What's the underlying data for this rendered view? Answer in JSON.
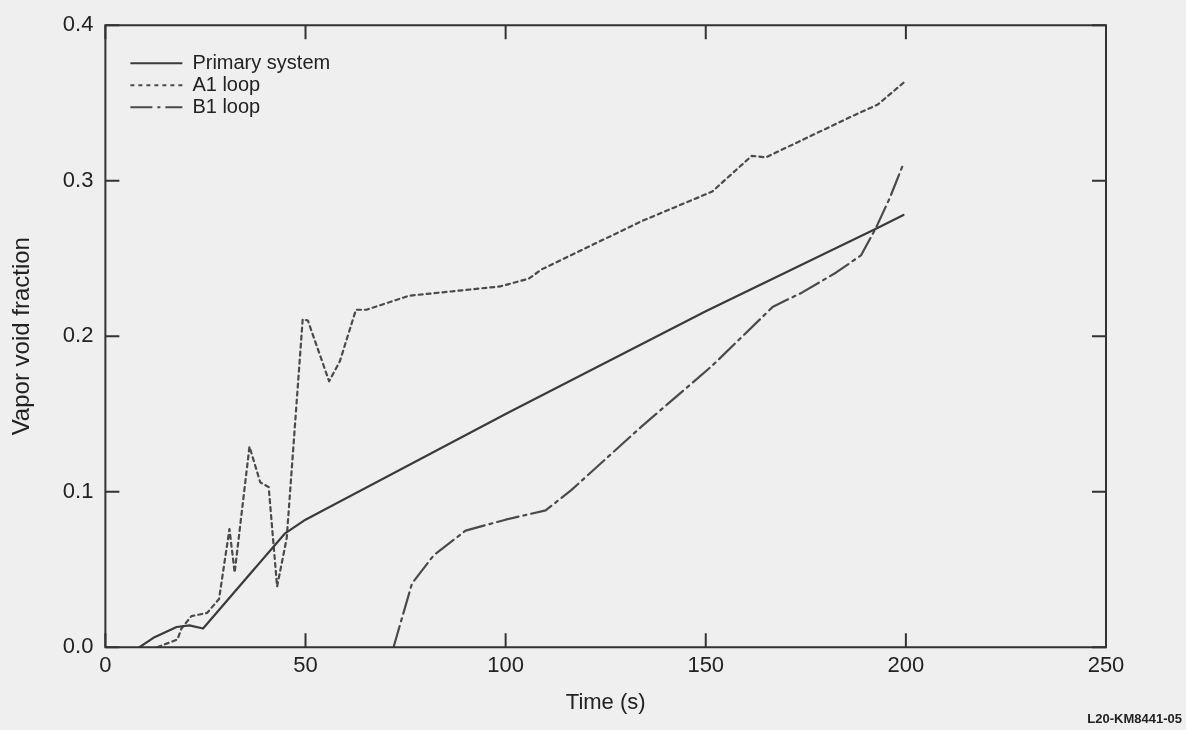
{
  "chart_data": {
    "type": "line",
    "xlabel": "Time (s)",
    "ylabel": "Vapor void fraction",
    "xlim": [
      0,
      250
    ],
    "ylim": [
      0,
      0.4
    ],
    "xticks": [
      0,
      50,
      100,
      150,
      200,
      250
    ],
    "yticks": [
      {
        "value": 0,
        "label": "0.0"
      },
      0.1,
      0.2,
      0.3,
      0.4
    ],
    "legend": "top left",
    "marker": "none",
    "annotations": [
      "L20-KM8441-05"
    ],
    "series": [
      {
        "name": "Primary system",
        "color": "#3a3a3a",
        "line_style": "solid",
        "x": [
          8.5,
          12,
          17.8,
          21,
          24.4,
          44.8,
          50,
          100,
          150,
          192.4,
          199.4
        ],
        "values": [
          0,
          0.006,
          0.013,
          0.014,
          0.012,
          0.073,
          0.082,
          0.15,
          0.216,
          0.269,
          0.278
        ]
      },
      {
        "name": "A1 loop",
        "color": "#4a4a4a",
        "line_style": "dotted",
        "x": [
          13,
          18,
          19,
          21.5,
          25.4,
          28.4,
          31,
          32.3,
          36,
          38.7,
          40.8,
          42.9,
          45.3,
          49.3,
          50.6,
          55.9,
          58.6,
          62.6,
          65.2,
          75.8,
          98.6,
          105.8,
          109,
          134,
          151.6,
          161.5,
          165,
          187,
          193,
          199.4
        ],
        "values": [
          0,
          0.005,
          0.012,
          0.02,
          0.022,
          0.031,
          0.076,
          0.048,
          0.129,
          0.106,
          0.103,
          0.039,
          0.07,
          0.211,
          0.21,
          0.171,
          0.184,
          0.217,
          0.217,
          0.226,
          0.232,
          0.237,
          0.243,
          0.274,
          0.293,
          0.316,
          0.315,
          0.342,
          0.349,
          0.363
        ]
      },
      {
        "name": "B1 loop",
        "color": "#4a4a4a",
        "line_style": "dashed",
        "x": [
          72,
          76.6,
          82,
          90,
          100,
          110,
          116.4,
          134,
          151.6,
          166.8,
          174,
          182.6,
          188.8,
          192.4,
          196,
          199.4
        ],
        "values": [
          0,
          0.041,
          0.059,
          0.075,
          0.082,
          0.088,
          0.101,
          0.142,
          0.181,
          0.219,
          0.228,
          0.241,
          0.252,
          0.269,
          0.289,
          0.311
        ]
      }
    ]
  }
}
